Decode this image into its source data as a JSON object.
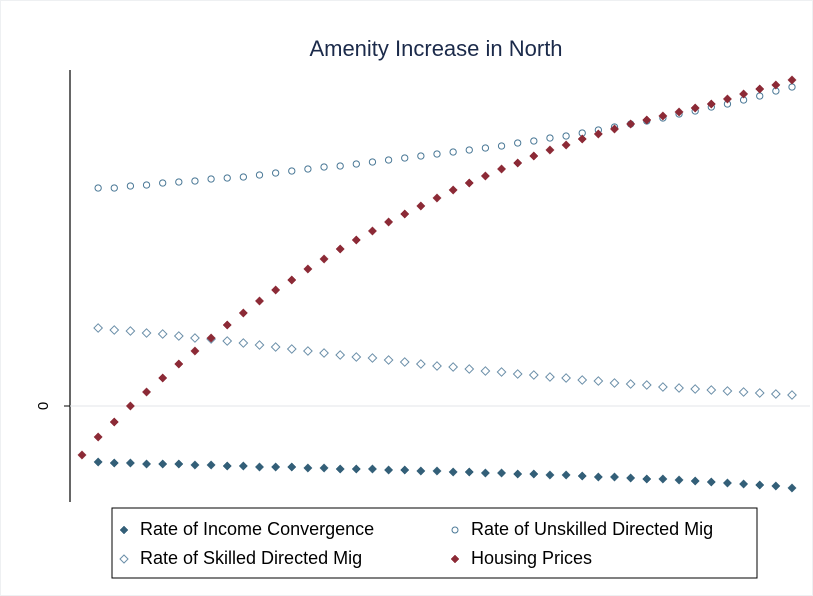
{
  "chart_data": {
    "type": "scatter",
    "title": "Amenity Increase in North",
    "categories": [
      null,
      null,
      null,
      null,
      null,
      null,
      null,
      null,
      null,
      null,
      null,
      null,
      null,
      null,
      null,
      null,
      null,
      null,
      null,
      null,
      null,
      null,
      null,
      null,
      null,
      null,
      null,
      null,
      null,
      null,
      null,
      null,
      null,
      null,
      null,
      null,
      null,
      null,
      null,
      null,
      null,
      null,
      null,
      null,
      null
    ],
    "ylim": [
      -0.96,
      3.36
    ],
    "yticks": [
      0
    ],
    "grid": true,
    "legend": "bottom",
    "series": [
      {
        "name": "Rate of Income Convergence",
        "color": "#335f78",
        "marker": "diamond",
        "filled": true,
        "values": [
          null,
          -0.56,
          -0.57,
          -0.57,
          -0.58,
          -0.58,
          -0.58,
          -0.59,
          -0.59,
          -0.6,
          -0.6,
          -0.61,
          -0.61,
          -0.61,
          -0.62,
          -0.62,
          -0.63,
          -0.63,
          -0.63,
          -0.64,
          -0.64,
          -0.65,
          -0.65,
          -0.66,
          -0.66,
          -0.67,
          -0.67,
          -0.68,
          -0.68,
          -0.69,
          -0.69,
          -0.7,
          -0.71,
          -0.71,
          -0.72,
          -0.73,
          -0.73,
          -0.74,
          -0.75,
          -0.76,
          -0.77,
          -0.78,
          -0.79,
          -0.8,
          -0.82
        ]
      },
      {
        "name": "Rate of Unskilled Directed Mig",
        "color": "#4a7896",
        "marker": "circle",
        "filled": false,
        "values": [
          null,
          2.18,
          2.18,
          2.2,
          2.21,
          2.23,
          2.24,
          2.25,
          2.27,
          2.28,
          2.29,
          2.31,
          2.33,
          2.35,
          2.37,
          2.39,
          2.4,
          2.42,
          2.44,
          2.46,
          2.48,
          2.5,
          2.52,
          2.54,
          2.56,
          2.58,
          2.6,
          2.63,
          2.65,
          2.68,
          2.7,
          2.73,
          2.76,
          2.79,
          2.82,
          2.85,
          2.88,
          2.92,
          2.95,
          2.99,
          3.02,
          3.06,
          3.1,
          3.15,
          3.19
        ]
      },
      {
        "name": "Rate of Skilled Directed Mig",
        "color": "#6a8ea8",
        "marker": "diamond",
        "filled": false,
        "values": [
          null,
          0.78,
          0.76,
          0.75,
          0.73,
          0.72,
          0.7,
          0.68,
          0.67,
          0.65,
          0.63,
          0.61,
          0.59,
          0.57,
          0.55,
          0.53,
          0.51,
          0.49,
          0.48,
          0.46,
          0.44,
          0.42,
          0.4,
          0.39,
          0.37,
          0.35,
          0.34,
          0.32,
          0.31,
          0.29,
          0.28,
          0.26,
          0.25,
          0.23,
          0.22,
          0.21,
          0.19,
          0.18,
          0.17,
          0.16,
          0.15,
          0.14,
          0.13,
          0.12,
          0.11
        ]
      },
      {
        "name": "Housing Prices",
        "color": "#8c2a36",
        "marker": "diamond",
        "filled": true,
        "values": [
          -0.49,
          -0.31,
          -0.16,
          0,
          0.14,
          0.28,
          0.42,
          0.55,
          0.68,
          0.81,
          0.93,
          1.05,
          1.16,
          1.26,
          1.37,
          1.47,
          1.57,
          1.66,
          1.75,
          1.84,
          1.92,
          2.0,
          2.08,
          2.16,
          2.23,
          2.3,
          2.37,
          2.43,
          2.5,
          2.56,
          2.61,
          2.67,
          2.72,
          2.77,
          2.82,
          2.86,
          2.9,
          2.94,
          2.98,
          3.02,
          3.07,
          3.12,
          3.17,
          3.21,
          3.26
        ]
      }
    ]
  }
}
